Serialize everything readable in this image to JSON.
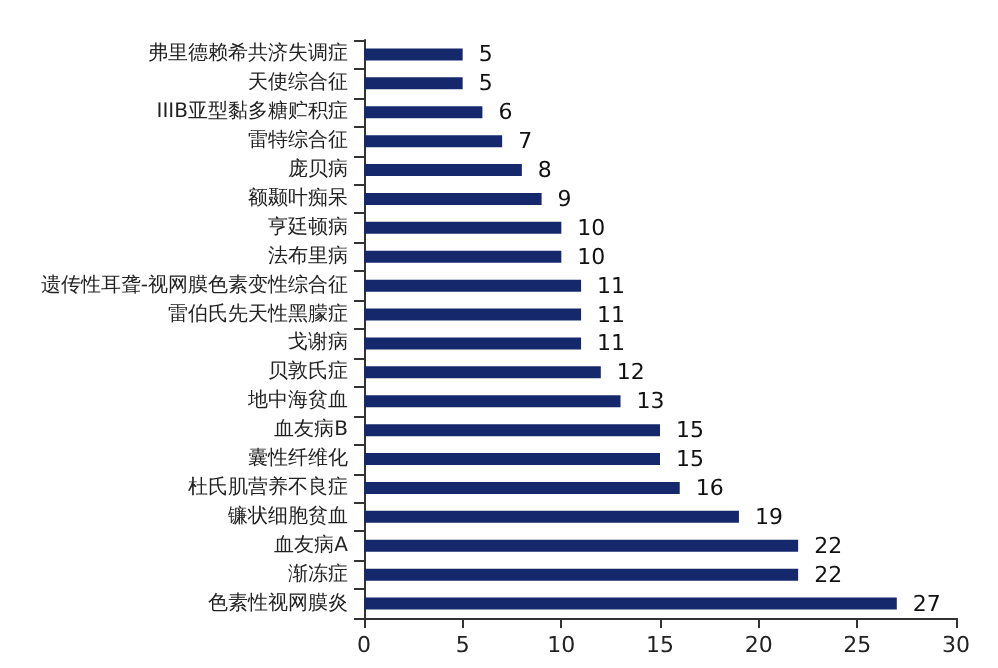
{
  "chart_data": {
    "type": "bar",
    "orientation": "horizontal",
    "categories": [
      "弗里德赖希共济失调症",
      "天使综合征",
      "IIIB亚型黏多糖贮积症",
      "雷特综合征",
      "庞贝病",
      "额颞叶痴呆",
      "亨廷顿病",
      "法布里病",
      "遗传性耳聋-视网膜色素变性综合征",
      "雷伯氏先天性黑朦症",
      "戈谢病",
      "贝敦氏症",
      "地中海贫血",
      "血友病B",
      "囊性纤维化",
      "杜氏肌营养不良症",
      "镰状细胞贫血",
      "血友病A",
      "渐冻症",
      "色素性视网膜炎"
    ],
    "values": [
      5,
      5,
      6,
      7,
      8,
      9,
      10,
      10,
      11,
      11,
      11,
      12,
      13,
      15,
      15,
      16,
      19,
      22,
      22,
      27
    ],
    "color": "#14286b",
    "xlim": [
      0,
      30
    ],
    "xticks": [
      0,
      5,
      10,
      15,
      20,
      25,
      30
    ],
    "grid": false,
    "data_labels": true
  }
}
